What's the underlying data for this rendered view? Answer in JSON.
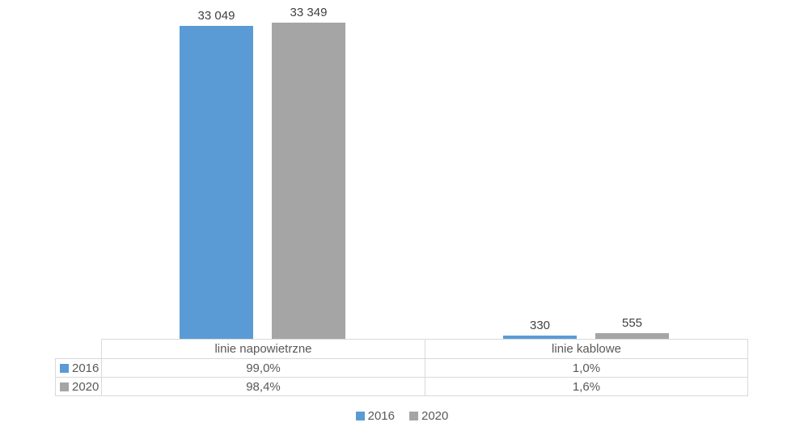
{
  "chart_data": {
    "type": "bar",
    "categories": [
      "linie napowietrzne",
      "linie kablowe"
    ],
    "series": [
      {
        "name": "2016",
        "color": "#5B9BD5",
        "values": [
          33049,
          330
        ],
        "value_labels": [
          "33 049",
          "330"
        ],
        "table_row": [
          "99,0%",
          "1,0%"
        ]
      },
      {
        "name": "2020",
        "color": "#A5A5A5",
        "values": [
          33349,
          555
        ],
        "value_labels": [
          "33 349",
          "555"
        ],
        "table_row": [
          "98,4%",
          "1,6%"
        ]
      }
    ],
    "title": "",
    "xlabel": "",
    "ylabel": "",
    "ylim": [
      0,
      33349
    ],
    "grid": false,
    "legend_position": "bottom",
    "data_table_shown": true
  },
  "colors": {
    "series_2016": "#5B9BD5",
    "series_2020": "#A5A5A5",
    "label_text": "#404040",
    "table_text": "#595959",
    "table_border": "#D9D9D9",
    "background": "#FFFFFF"
  }
}
